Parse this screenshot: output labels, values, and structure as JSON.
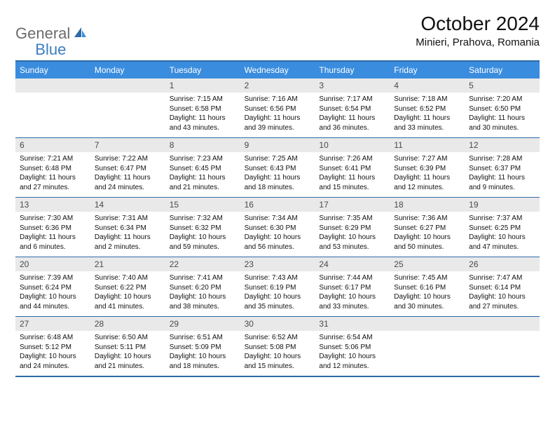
{
  "logo": {
    "text1": "General",
    "text2": "Blue"
  },
  "title": "October 2024",
  "location": "Minieri, Prahova, Romania",
  "colors": {
    "header_bg": "#3a8dde",
    "header_text": "#ffffff",
    "rule": "#2f6aa8",
    "daynum_bg": "#e9e9e9",
    "daynum_text": "#4a4a4a",
    "body_text": "#111111",
    "logo_gray": "#6b6b6b",
    "logo_blue": "#3a7ebf"
  },
  "dow": [
    "Sunday",
    "Monday",
    "Tuesday",
    "Wednesday",
    "Thursday",
    "Friday",
    "Saturday"
  ],
  "weeks": [
    [
      {
        "n": "",
        "sr": "",
        "ss": "",
        "dl": ""
      },
      {
        "n": "",
        "sr": "",
        "ss": "",
        "dl": ""
      },
      {
        "n": "1",
        "sr": "Sunrise: 7:15 AM",
        "ss": "Sunset: 6:58 PM",
        "dl": "Daylight: 11 hours and 43 minutes."
      },
      {
        "n": "2",
        "sr": "Sunrise: 7:16 AM",
        "ss": "Sunset: 6:56 PM",
        "dl": "Daylight: 11 hours and 39 minutes."
      },
      {
        "n": "3",
        "sr": "Sunrise: 7:17 AM",
        "ss": "Sunset: 6:54 PM",
        "dl": "Daylight: 11 hours and 36 minutes."
      },
      {
        "n": "4",
        "sr": "Sunrise: 7:18 AM",
        "ss": "Sunset: 6:52 PM",
        "dl": "Daylight: 11 hours and 33 minutes."
      },
      {
        "n": "5",
        "sr": "Sunrise: 7:20 AM",
        "ss": "Sunset: 6:50 PM",
        "dl": "Daylight: 11 hours and 30 minutes."
      }
    ],
    [
      {
        "n": "6",
        "sr": "Sunrise: 7:21 AM",
        "ss": "Sunset: 6:48 PM",
        "dl": "Daylight: 11 hours and 27 minutes."
      },
      {
        "n": "7",
        "sr": "Sunrise: 7:22 AM",
        "ss": "Sunset: 6:47 PM",
        "dl": "Daylight: 11 hours and 24 minutes."
      },
      {
        "n": "8",
        "sr": "Sunrise: 7:23 AM",
        "ss": "Sunset: 6:45 PM",
        "dl": "Daylight: 11 hours and 21 minutes."
      },
      {
        "n": "9",
        "sr": "Sunrise: 7:25 AM",
        "ss": "Sunset: 6:43 PM",
        "dl": "Daylight: 11 hours and 18 minutes."
      },
      {
        "n": "10",
        "sr": "Sunrise: 7:26 AM",
        "ss": "Sunset: 6:41 PM",
        "dl": "Daylight: 11 hours and 15 minutes."
      },
      {
        "n": "11",
        "sr": "Sunrise: 7:27 AM",
        "ss": "Sunset: 6:39 PM",
        "dl": "Daylight: 11 hours and 12 minutes."
      },
      {
        "n": "12",
        "sr": "Sunrise: 7:28 AM",
        "ss": "Sunset: 6:37 PM",
        "dl": "Daylight: 11 hours and 9 minutes."
      }
    ],
    [
      {
        "n": "13",
        "sr": "Sunrise: 7:30 AM",
        "ss": "Sunset: 6:36 PM",
        "dl": "Daylight: 11 hours and 6 minutes."
      },
      {
        "n": "14",
        "sr": "Sunrise: 7:31 AM",
        "ss": "Sunset: 6:34 PM",
        "dl": "Daylight: 11 hours and 2 minutes."
      },
      {
        "n": "15",
        "sr": "Sunrise: 7:32 AM",
        "ss": "Sunset: 6:32 PM",
        "dl": "Daylight: 10 hours and 59 minutes."
      },
      {
        "n": "16",
        "sr": "Sunrise: 7:34 AM",
        "ss": "Sunset: 6:30 PM",
        "dl": "Daylight: 10 hours and 56 minutes."
      },
      {
        "n": "17",
        "sr": "Sunrise: 7:35 AM",
        "ss": "Sunset: 6:29 PM",
        "dl": "Daylight: 10 hours and 53 minutes."
      },
      {
        "n": "18",
        "sr": "Sunrise: 7:36 AM",
        "ss": "Sunset: 6:27 PM",
        "dl": "Daylight: 10 hours and 50 minutes."
      },
      {
        "n": "19",
        "sr": "Sunrise: 7:37 AM",
        "ss": "Sunset: 6:25 PM",
        "dl": "Daylight: 10 hours and 47 minutes."
      }
    ],
    [
      {
        "n": "20",
        "sr": "Sunrise: 7:39 AM",
        "ss": "Sunset: 6:24 PM",
        "dl": "Daylight: 10 hours and 44 minutes."
      },
      {
        "n": "21",
        "sr": "Sunrise: 7:40 AM",
        "ss": "Sunset: 6:22 PM",
        "dl": "Daylight: 10 hours and 41 minutes."
      },
      {
        "n": "22",
        "sr": "Sunrise: 7:41 AM",
        "ss": "Sunset: 6:20 PM",
        "dl": "Daylight: 10 hours and 38 minutes."
      },
      {
        "n": "23",
        "sr": "Sunrise: 7:43 AM",
        "ss": "Sunset: 6:19 PM",
        "dl": "Daylight: 10 hours and 35 minutes."
      },
      {
        "n": "24",
        "sr": "Sunrise: 7:44 AM",
        "ss": "Sunset: 6:17 PM",
        "dl": "Daylight: 10 hours and 33 minutes."
      },
      {
        "n": "25",
        "sr": "Sunrise: 7:45 AM",
        "ss": "Sunset: 6:16 PM",
        "dl": "Daylight: 10 hours and 30 minutes."
      },
      {
        "n": "26",
        "sr": "Sunrise: 7:47 AM",
        "ss": "Sunset: 6:14 PM",
        "dl": "Daylight: 10 hours and 27 minutes."
      }
    ],
    [
      {
        "n": "27",
        "sr": "Sunrise: 6:48 AM",
        "ss": "Sunset: 5:12 PM",
        "dl": "Daylight: 10 hours and 24 minutes."
      },
      {
        "n": "28",
        "sr": "Sunrise: 6:50 AM",
        "ss": "Sunset: 5:11 PM",
        "dl": "Daylight: 10 hours and 21 minutes."
      },
      {
        "n": "29",
        "sr": "Sunrise: 6:51 AM",
        "ss": "Sunset: 5:09 PM",
        "dl": "Daylight: 10 hours and 18 minutes."
      },
      {
        "n": "30",
        "sr": "Sunrise: 6:52 AM",
        "ss": "Sunset: 5:08 PM",
        "dl": "Daylight: 10 hours and 15 minutes."
      },
      {
        "n": "31",
        "sr": "Sunrise: 6:54 AM",
        "ss": "Sunset: 5:06 PM",
        "dl": "Daylight: 10 hours and 12 minutes."
      },
      {
        "n": "",
        "sr": "",
        "ss": "",
        "dl": ""
      },
      {
        "n": "",
        "sr": "",
        "ss": "",
        "dl": ""
      }
    ]
  ]
}
